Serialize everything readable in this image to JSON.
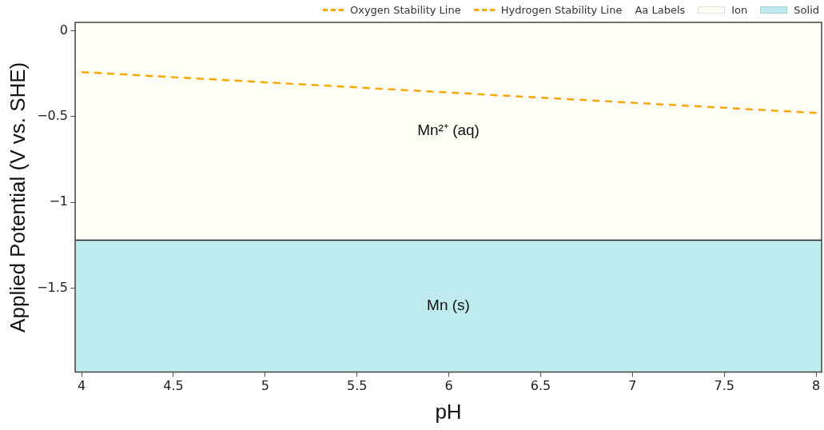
{
  "chart_data": {
    "type": "line",
    "xlabel": "pH",
    "ylabel": "Applied Potential (V vs. SHE)",
    "xlim": [
      3.965,
      8.03
    ],
    "ylim": [
      -1.99,
      0.05
    ],
    "xticks": [
      4,
      4.5,
      5,
      5.5,
      6,
      6.5,
      7,
      7.5,
      8
    ],
    "yticks": [
      0,
      {
        "value": -0.5,
        "label": "−0.5"
      },
      {
        "value": -1,
        "label": "−1"
      },
      {
        "value": -1.5,
        "label": "−1.5"
      }
    ],
    "legend": "top right",
    "marker": "none",
    "line_style": "dashed",
    "series": [
      {
        "name": "Oxygen Stability Line",
        "color": "#ffa500"
      },
      {
        "name": "Hydrogen Stability Line",
        "color": "#ffa500",
        "x": [
          4,
          8.03
        ],
        "values": [
          -0.24,
          -0.48
        ]
      }
    ],
    "ref_lines": [
      {
        "axis": "y",
        "value": -1.22,
        "color": "#222222"
      }
    ],
    "bands": [
      {
        "axis": "y",
        "from": 0.05,
        "to": -1.22,
        "label": "Mn²⁺ (aq)",
        "color": "#fffff7"
      },
      {
        "axis": "y",
        "from": -1.22,
        "to": -1.99,
        "label": "Mn (s)",
        "color": "#bdebee"
      }
    ],
    "annotations": [
      "Aa Labels",
      "Ion",
      "Solid"
    ]
  }
}
